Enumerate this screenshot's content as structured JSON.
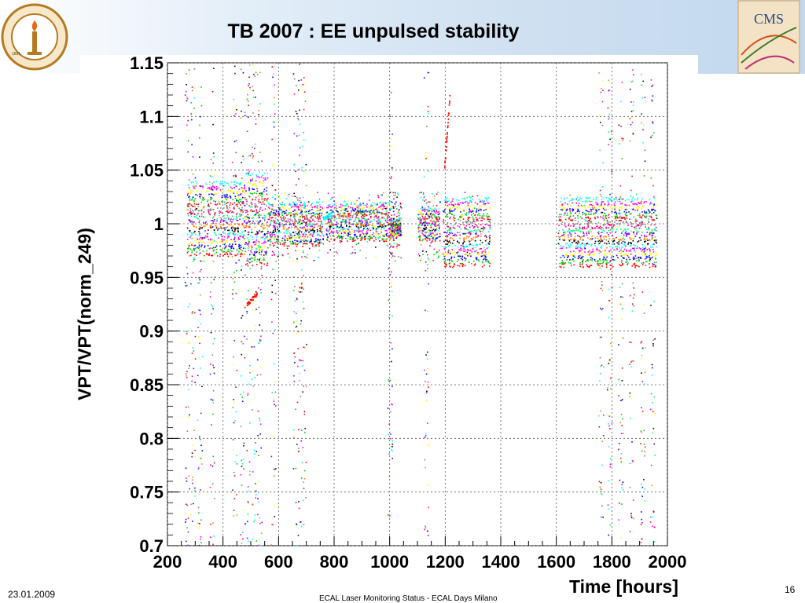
{
  "slide": {
    "title": "TB 2007 : EE unpulsed stability",
    "footer_date": "23.01.2009",
    "footer_center": "ECAL Laser Monitoring Status - ECAL Days Milano",
    "page_number": "16",
    "logo_left_text": "CALIFORNIA INSTITUTE OF TECHNOLOGY",
    "logo_left_year": "1891",
    "logo_right_text": "CMS"
  },
  "chart_data": {
    "type": "scatter",
    "title": "",
    "xlabel": "Time [hours]",
    "ylabel": "VPT/VPT(norm_249)",
    "xlim": [
      200,
      2000
    ],
    "ylim": [
      0.7,
      1.15
    ],
    "xticks": [
      200,
      400,
      600,
      800,
      1000,
      1200,
      1400,
      1600,
      1800,
      2000
    ],
    "yticks": [
      0.7,
      0.75,
      0.8,
      0.85,
      0.9,
      0.95,
      1,
      1.05,
      1.1,
      1.15
    ],
    "xtick_labels": [
      "200",
      "400",
      "600",
      "800",
      "1000",
      "1200",
      "1400",
      "1600",
      "1800",
      "2000"
    ],
    "ytick_labels": [
      "0.7",
      "0.75",
      "0.8",
      "0.85",
      "0.9",
      "0.95",
      "1",
      "1.05",
      "1.1",
      "1.15"
    ],
    "grid": true,
    "series_colors": [
      "#ff0000",
      "#00cc00",
      "#0000ff",
      "#ffff00",
      "#ff00ff",
      "#00ffff",
      "#000000",
      "#ff8000",
      "#8000ff",
      "#00ff80",
      "#ff0080",
      "#808080"
    ],
    "time_blocks": [
      {
        "x": [
          270,
          480
        ],
        "y": [
          0.97,
          1.04
        ]
      },
      {
        "x": [
          480,
          560
        ],
        "y": [
          0.96,
          1.05
        ]
      },
      {
        "x": [
          560,
          760
        ],
        "y": [
          0.98,
          1.02
        ]
      },
      {
        "x": [
          770,
          1000
        ],
        "y": [
          0.985,
          1.02
        ]
      },
      {
        "x": [
          1000,
          1040
        ],
        "y": [
          0.99,
          1.005
        ]
      },
      {
        "x": [
          1100,
          1180
        ],
        "y": [
          0.985,
          1.015
        ]
      },
      {
        "x": [
          1190,
          1360
        ],
        "y": [
          0.96,
          1.025
        ]
      },
      {
        "x": [
          1605,
          1960
        ],
        "y": [
          0.96,
          1.025
        ]
      }
    ],
    "vertical_streaks": [
      270,
      290,
      315,
      360,
      440,
      470,
      490,
      510,
      530,
      580,
      660,
      675,
      690,
      1000,
      1130,
      1760,
      1790,
      1830,
      1870,
      1910,
      1945
    ],
    "annotations": [
      {
        "x": [
          1195,
          1215
        ],
        "y": [
          1.05,
          1.12
        ],
        "color": "#ff0000"
      },
      {
        "x": [
          485,
          520
        ],
        "y": [
          0.925,
          0.935
        ],
        "color": "#ff0000"
      },
      {
        "x": [
          760,
          790
        ],
        "y": [
          1.005,
          1.01
        ],
        "color": "#00ffff"
      }
    ]
  }
}
